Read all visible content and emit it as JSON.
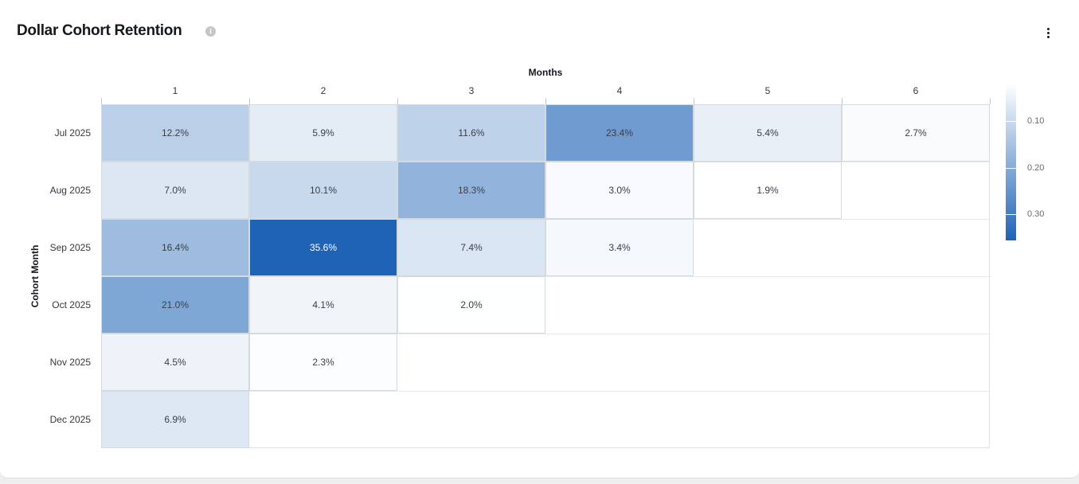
{
  "header": {
    "title": "Dollar Cohort Retention",
    "info_icon_glyph": "i"
  },
  "chart_data": {
    "type": "heatmap",
    "title": "Dollar Cohort Retention",
    "x_axis": {
      "title": "Months",
      "categories": [
        "1",
        "2",
        "3",
        "4",
        "5",
        "6"
      ]
    },
    "y_axis": {
      "title": "Cohort Month",
      "categories": [
        "Jul 2025",
        "Aug 2025",
        "Sep 2025",
        "Oct 2025",
        "Nov 2025",
        "Dec 2025"
      ]
    },
    "rows": [
      {
        "cohort": "Jul 2025",
        "values_percent": [
          12.2,
          5.9,
          11.6,
          23.4,
          5.4,
          2.7
        ]
      },
      {
        "cohort": "Aug 2025",
        "values_percent": [
          7.0,
          10.1,
          18.3,
          3.0,
          1.9,
          null
        ]
      },
      {
        "cohort": "Sep 2025",
        "values_percent": [
          16.4,
          35.6,
          7.4,
          3.4,
          null,
          null
        ]
      },
      {
        "cohort": "Oct 2025",
        "values_percent": [
          21.0,
          4.1,
          2.0,
          null,
          null,
          null
        ]
      },
      {
        "cohort": "Nov 2025",
        "values_percent": [
          4.5,
          2.3,
          null,
          null,
          null,
          null
        ]
      },
      {
        "cohort": "Dec 2025",
        "values_percent": [
          6.9,
          null,
          null,
          null,
          null,
          null
        ]
      }
    ],
    "value_suffix": "%",
    "legend": {
      "position": "right",
      "orientation": "vertical",
      "tick_labels": [
        "0.10",
        "0.20",
        "0.30"
      ],
      "tick_values": [
        0.1,
        0.2,
        0.3
      ],
      "scale_min": 0.019,
      "scale_max": 0.356,
      "color_low": "#ffffff",
      "color_high": "#1e63b5"
    }
  }
}
